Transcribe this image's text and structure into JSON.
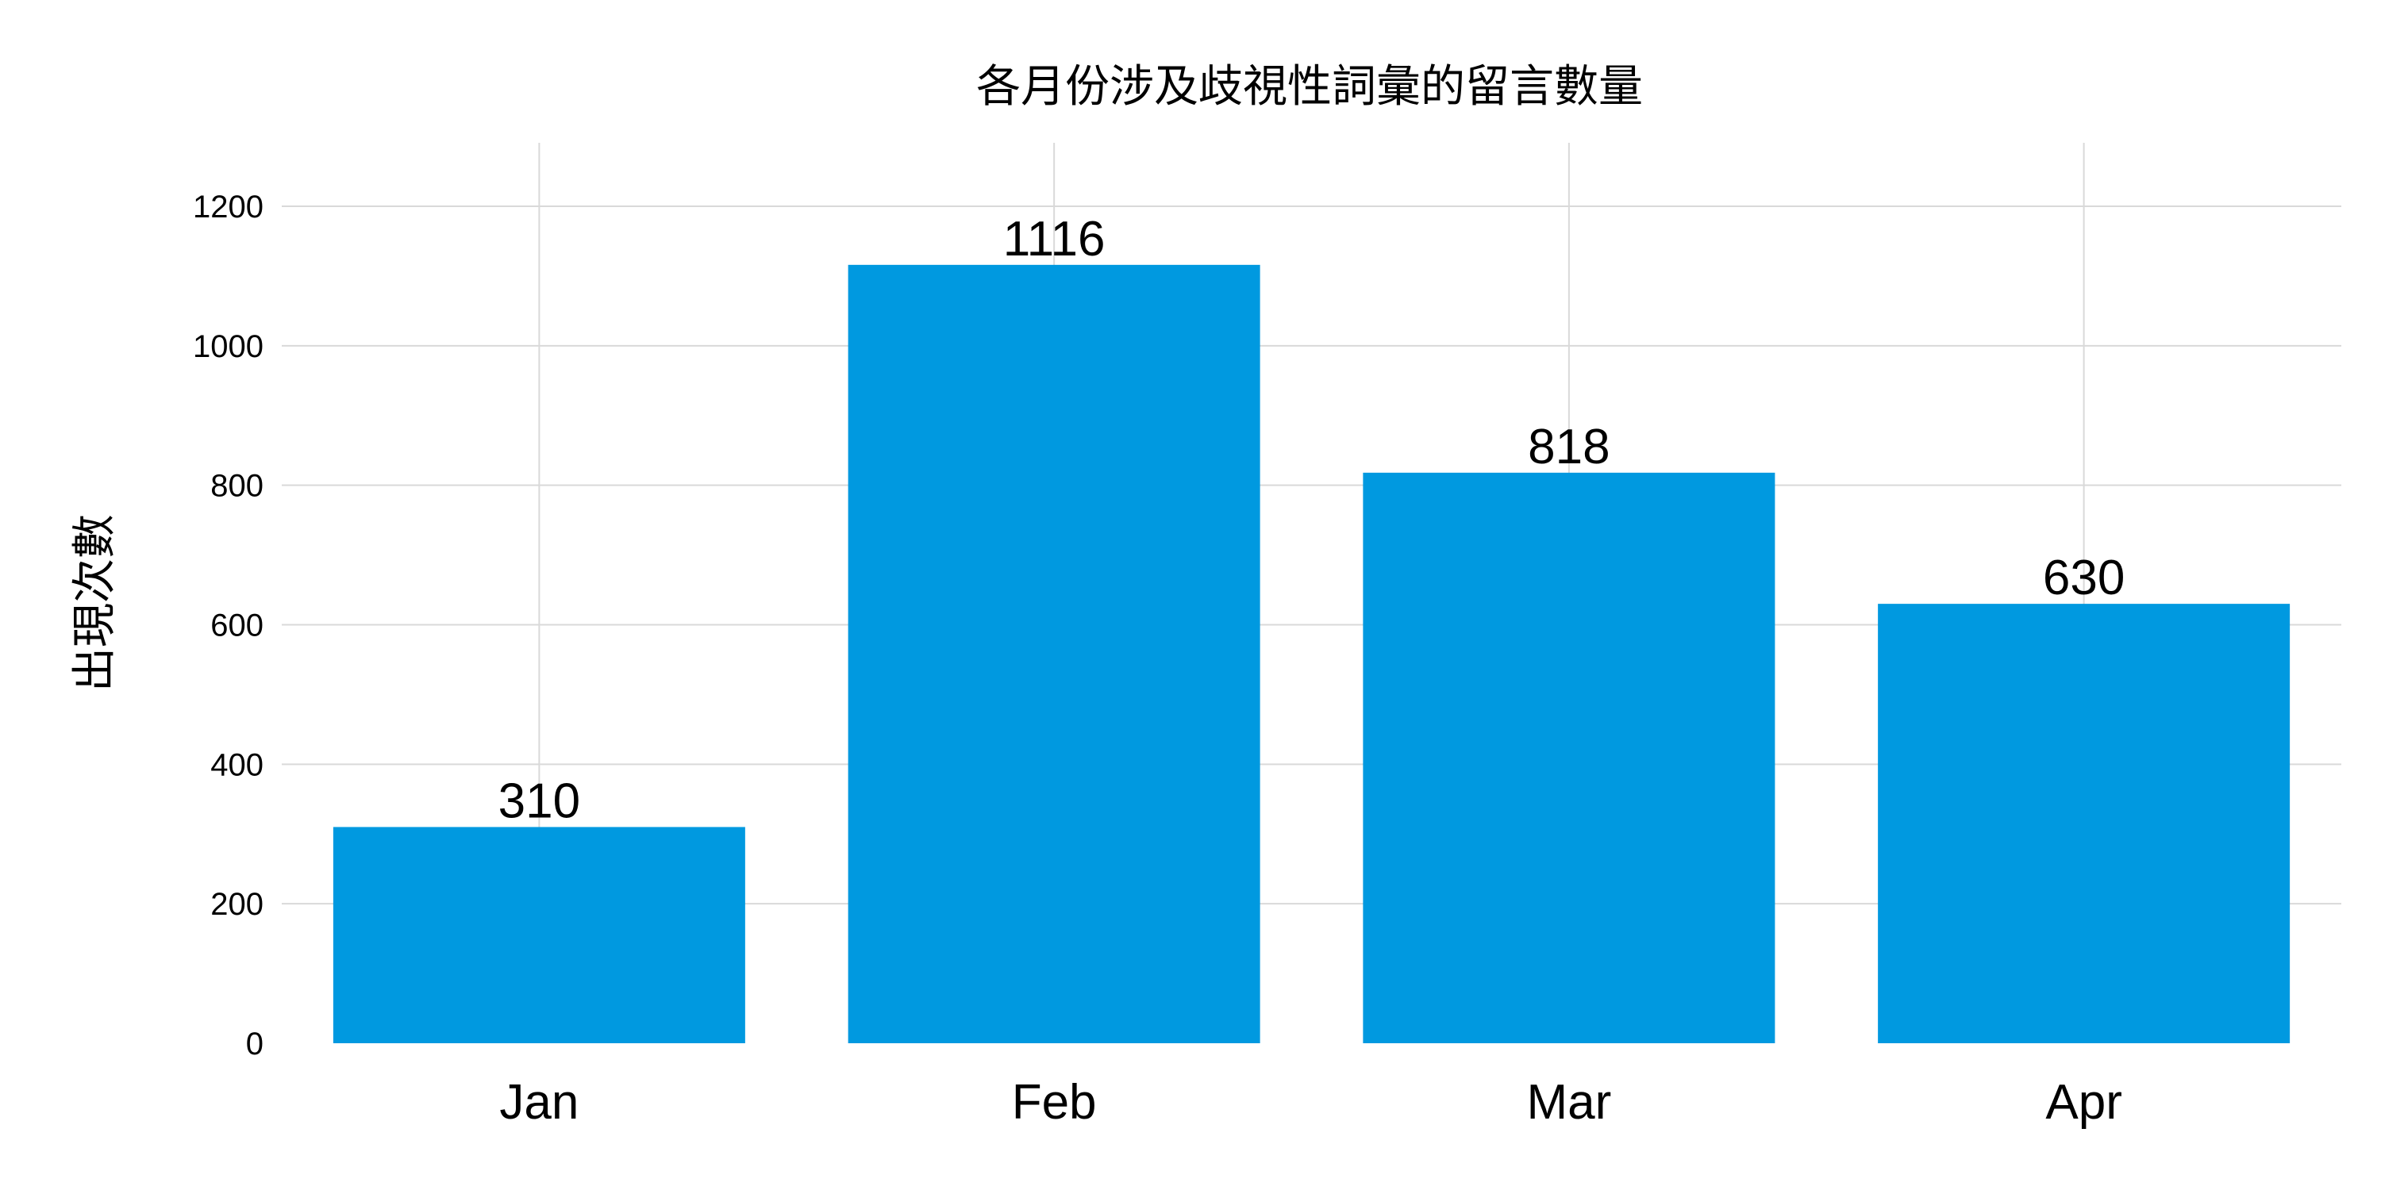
{
  "chart_data": {
    "type": "bar",
    "title": "各月份涉及歧視性詞彙的留言數量",
    "xlabel": "",
    "ylabel": "出現次數",
    "categories": [
      "Jan",
      "Feb",
      "Mar",
      "Apr"
    ],
    "values": [
      310,
      1116,
      818,
      630
    ],
    "data_labels": [
      "310",
      "1116",
      "818",
      "630"
    ],
    "yticks": [
      0,
      200,
      400,
      600,
      800,
      1000,
      1200
    ],
    "ytick_labels": [
      "0",
      "200",
      "400",
      "600",
      "800",
      "1000",
      "1200"
    ],
    "ylim": [
      0,
      1300
    ],
    "grid": true,
    "legend": "none",
    "colors": {
      "bar": "#0099e0",
      "grid": "#d9d9d9"
    }
  }
}
